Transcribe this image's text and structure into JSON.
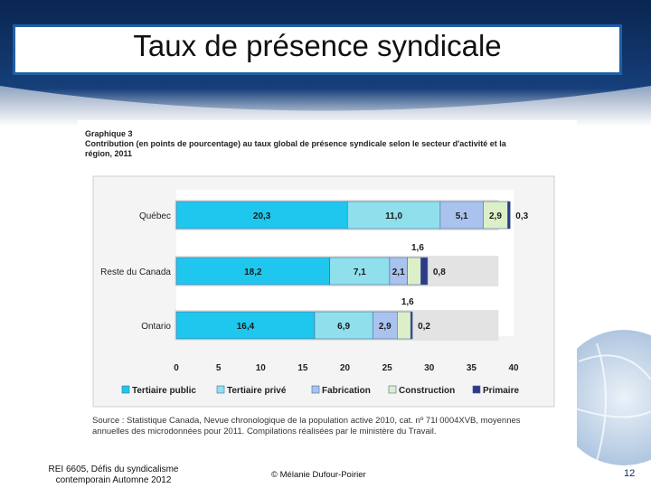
{
  "slide": {
    "title": "Taux de présence syndicale",
    "footer_course_line1": "REI 6605, Défis du syndicalisme",
    "footer_course_line2": "contemporain Automne 2012",
    "footer_author": "© Mélanie Dufour-Poirier",
    "page_number": "12"
  },
  "figure": {
    "heading_line1": "Graphique 3",
    "heading_line2": "Contribution (en points de pourcentage) au taux global de présence syndicale selon le secteur d'activité et la",
    "heading_line3": "région, 2011",
    "source_line1": "Source : Statistique Canada, Nevue chronologique de la population active 2010, cat. nº 71l 0004XVB, moyennes",
    "source_line2": "annuelles des microdonnées pour 2011. Compilations réalisées par le ministère du Travail."
  },
  "colors": {
    "title_border": "#1f5fa6",
    "bg_dark": "#0b2a55",
    "bg_light": "#a9c6e4"
  },
  "chart_data": {
    "type": "bar",
    "orientation": "horizontal",
    "stacked": true,
    "categories": [
      "Québec",
      "Reste du Canada",
      "Ontario"
    ],
    "series": [
      {
        "name": "Tertiaire public",
        "color": "#1fc7ee",
        "values": [
          20.3,
          18.2,
          16.4
        ]
      },
      {
        "name": "Tertiaire privé",
        "color": "#8fe0ec",
        "values": [
          11.0,
          7.1,
          6.9
        ]
      },
      {
        "name": "Fabrication",
        "color": "#a9c3ee",
        "values": [
          5.1,
          2.1,
          2.9
        ]
      },
      {
        "name": "Construction",
        "color": "#dcefc8",
        "values": [
          2.9,
          1.6,
          1.6
        ]
      },
      {
        "name": "Primaire",
        "color": "#2e3a87",
        "values": [
          0.3,
          0.8,
          0.2
        ]
      }
    ],
    "data_labels": [
      [
        "20,3",
        "11,0",
        "5,1",
        "2,9",
        "0,3"
      ],
      [
        "18,2",
        "7,1",
        "2,1",
        "1,6",
        "0,8"
      ],
      [
        "16,4",
        "6,9",
        "2,9",
        "1,6",
        "0,2"
      ]
    ],
    "xlim": [
      0,
      40
    ],
    "xticks": [
      "0",
      "5",
      "10",
      "15",
      "20",
      "25",
      "30",
      "35",
      "40"
    ],
    "grid": false,
    "legend_position": "bottom"
  }
}
